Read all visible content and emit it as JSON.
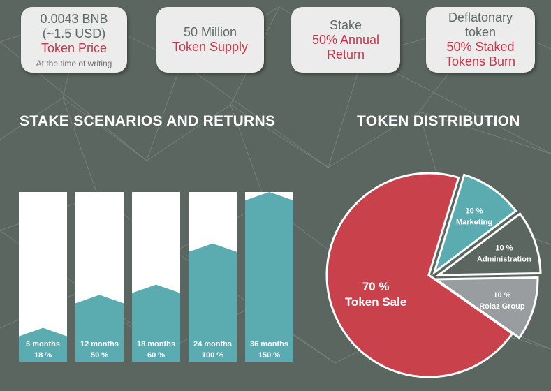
{
  "cards": {
    "price": {
      "line1": "0.0043 BNB",
      "line2": "(~1.5 USD)",
      "label": "Token Price",
      "note": "At the time of writing"
    },
    "supply": {
      "value": "50 Million",
      "label": "Token Supply"
    },
    "stake": {
      "title": "Stake",
      "line1": "50% Annual",
      "line2": "Return"
    },
    "deflation": {
      "line1": "Deflatonary",
      "line2": "token",
      "label1": "50% Staked",
      "label2": "Tokens Burn"
    }
  },
  "sections": {
    "stake_title": "STAKE SCENARIOS AND RETURNS",
    "distribution_title": "TOKEN DISTRIBUTION"
  },
  "colors": {
    "background": "#5c6660",
    "teal": "#5aacb1",
    "red": "#c9414b",
    "gray": "#9a9d9f",
    "white": "#ffffff",
    "card_red": "#c8364a"
  },
  "chart_data": [
    {
      "type": "bar",
      "title": "STAKE SCENARIOS AND RETURNS",
      "categories": [
        "6 months",
        "12 months",
        "18 months",
        "24 months",
        "36 months"
      ],
      "value_labels": [
        "18 %",
        "50 %",
        "60 %",
        "100 %",
        "150 %"
      ],
      "values": [
        18,
        50,
        60,
        100,
        150
      ],
      "ylim": [
        0,
        150
      ]
    },
    {
      "type": "pie",
      "title": "TOKEN DISTRIBUTION",
      "slices": [
        {
          "label": "Token Sale",
          "pct_label": "70 %",
          "value": 70,
          "color": "#c9414b"
        },
        {
          "label": "Marketing",
          "pct_label": "10 %",
          "value": 10,
          "color": "#5aacb1"
        },
        {
          "label": "Administration",
          "pct_label": "10 %",
          "value": 10,
          "color": "#5c6660"
        },
        {
          "label": "Rolaz Group",
          "pct_label": "10 %",
          "value": 10,
          "color": "#9a9d9f"
        }
      ]
    }
  ]
}
